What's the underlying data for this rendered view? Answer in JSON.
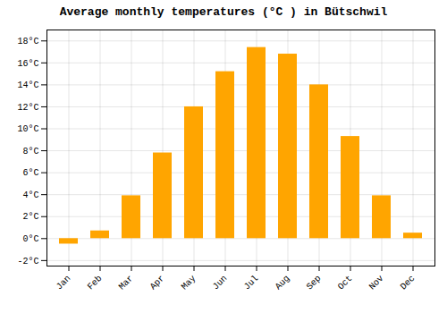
{
  "chart_data": {
    "type": "bar",
    "title": "Average monthly temperatures (°C ) in Bütschwil",
    "categories": [
      "Jan",
      "Feb",
      "Mar",
      "Apr",
      "May",
      "Jun",
      "Jul",
      "Aug",
      "Sep",
      "Oct",
      "Nov",
      "Dec"
    ],
    "values": [
      -0.5,
      0.7,
      3.9,
      7.8,
      12.0,
      15.2,
      17.4,
      16.8,
      14.0,
      9.3,
      3.9,
      0.5
    ],
    "color": "#FFA500",
    "ylim": [
      -2.5,
      19
    ],
    "yticks": [
      {
        "value": -2,
        "label": "-2°C"
      },
      {
        "value": 0,
        "label": "0°C"
      },
      {
        "value": 2,
        "label": "2°C"
      },
      {
        "value": 4,
        "label": "4°C"
      },
      {
        "value": 6,
        "label": "6°C"
      },
      {
        "value": 8,
        "label": "8°C"
      },
      {
        "value": 10,
        "label": "10°C"
      },
      {
        "value": 12,
        "label": "12°C"
      },
      {
        "value": 14,
        "label": "14°C"
      },
      {
        "value": 16,
        "label": "16°C"
      },
      {
        "value": 18,
        "label": "18°C"
      }
    ],
    "grid": true
  }
}
